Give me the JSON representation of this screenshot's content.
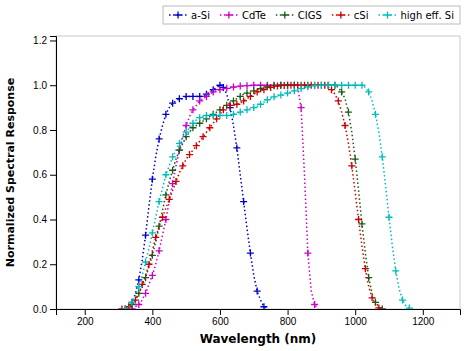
{
  "chart_data": {
    "type": "line",
    "xlabel": "Wavelength (nm)",
    "ylabel": "Normalized Spectral Response",
    "xlim": [
      115,
      1310
    ],
    "xticks": [
      200,
      400,
      600,
      800,
      1000,
      1200
    ],
    "ylim": [
      0.0,
      1.22
    ],
    "yticks": [
      {
        "value": 0.0,
        "label": "0.0"
      },
      0.2,
      0.4,
      0.6,
      0.8,
      {
        "value": 1.0,
        "label": "1.0"
      },
      1.2
    ],
    "grid": false,
    "legend": "upper right",
    "marker": "plus",
    "line_style": "dotted",
    "series": [
      {
        "name": "a-Si",
        "color": "#0000cc",
        "x": [
          320,
          330,
          340,
          350,
          360,
          370,
          380,
          390,
          400,
          410,
          420,
          430,
          440,
          450,
          460,
          470,
          480,
          490,
          500,
          510,
          520,
          530,
          540,
          550,
          560,
          570,
          580,
          590,
          600,
          605,
          610,
          620,
          630,
          640,
          650,
          660,
          670,
          680,
          690,
          700,
          710,
          720,
          730,
          740
        ],
        "values": [
          0.0,
          0.01,
          0.03,
          0.07,
          0.13,
          0.22,
          0.33,
          0.46,
          0.58,
          0.68,
          0.76,
          0.82,
          0.87,
          0.9,
          0.92,
          0.93,
          0.94,
          0.94,
          0.95,
          0.95,
          0.95,
          0.95,
          0.95,
          0.95,
          0.96,
          0.97,
          0.98,
          0.99,
          1.0,
          1.0,
          0.99,
          0.96,
          0.9,
          0.82,
          0.72,
          0.6,
          0.48,
          0.36,
          0.25,
          0.15,
          0.08,
          0.04,
          0.01,
          0.0
        ]
      },
      {
        "name": "CdTe",
        "color": "#cc00cc",
        "x": [
          340,
          350,
          360,
          370,
          380,
          390,
          400,
          410,
          420,
          430,
          440,
          450,
          460,
          470,
          480,
          490,
          500,
          510,
          520,
          530,
          540,
          550,
          560,
          570,
          580,
          590,
          600,
          610,
          620,
          630,
          640,
          650,
          660,
          670,
          680,
          690,
          700,
          710,
          720,
          730,
          740,
          750,
          760,
          770,
          780,
          790,
          800,
          810,
          820,
          830,
          840,
          850,
          860,
          870,
          880,
          890
        ],
        "values": [
          0.0,
          0.01,
          0.02,
          0.04,
          0.07,
          0.11,
          0.15,
          0.2,
          0.26,
          0.33,
          0.4,
          0.48,
          0.56,
          0.64,
          0.71,
          0.77,
          0.82,
          0.86,
          0.89,
          0.91,
          0.93,
          0.94,
          0.95,
          0.96,
          0.97,
          0.975,
          0.98,
          0.983,
          0.986,
          0.989,
          0.992,
          0.994,
          0.996,
          0.997,
          0.998,
          0.999,
          1.0,
          1.0,
          1.0,
          1.0,
          1.0,
          1.0,
          1.0,
          1.0,
          1.0,
          1.0,
          1.0,
          1.0,
          1.0,
          0.99,
          0.9,
          0.6,
          0.25,
          0.08,
          0.02,
          0.0
        ]
      },
      {
        "name": "CIGS",
        "color": "#1a5a1a",
        "x": [
          320,
          330,
          340,
          350,
          360,
          370,
          380,
          390,
          400,
          410,
          420,
          430,
          440,
          450,
          460,
          470,
          480,
          490,
          500,
          510,
          520,
          530,
          540,
          550,
          560,
          570,
          580,
          590,
          600,
          610,
          620,
          630,
          640,
          650,
          660,
          670,
          680,
          690,
          700,
          710,
          720,
          730,
          740,
          750,
          760,
          770,
          780,
          790,
          800,
          810,
          820,
          830,
          840,
          850,
          860,
          870,
          880,
          890,
          900,
          910,
          920,
          930,
          940,
          950,
          960,
          970,
          980,
          990,
          1000,
          1010,
          1020,
          1030,
          1040,
          1050,
          1060,
          1070,
          1080
        ],
        "values": [
          0.0,
          0.01,
          0.02,
          0.04,
          0.07,
          0.1,
          0.14,
          0.19,
          0.24,
          0.3,
          0.37,
          0.44,
          0.51,
          0.57,
          0.62,
          0.67,
          0.71,
          0.74,
          0.77,
          0.79,
          0.81,
          0.82,
          0.83,
          0.84,
          0.85,
          0.86,
          0.87,
          0.88,
          0.89,
          0.9,
          0.91,
          0.92,
          0.93,
          0.94,
          0.95,
          0.96,
          0.965,
          0.97,
          0.975,
          0.98,
          0.985,
          0.99,
          0.993,
          0.996,
          0.998,
          0.999,
          1.0,
          1.0,
          1.0,
          1.0,
          1.0,
          1.0,
          1.0,
          1.0,
          1.0,
          1.0,
          1.0,
          1.0,
          1.0,
          1.0,
          1.0,
          1.0,
          1.0,
          0.99,
          0.97,
          0.94,
          0.88,
          0.79,
          0.67,
          0.53,
          0.38,
          0.25,
          0.14,
          0.07,
          0.03,
          0.01,
          0.0
        ]
      },
      {
        "name": "cSi",
        "color": "#cc0000",
        "x": [
          310,
          320,
          330,
          340,
          350,
          360,
          370,
          380,
          390,
          400,
          410,
          420,
          430,
          440,
          450,
          460,
          470,
          480,
          490,
          500,
          510,
          520,
          530,
          540,
          550,
          560,
          570,
          580,
          590,
          600,
          610,
          620,
          630,
          640,
          650,
          660,
          670,
          680,
          690,
          700,
          710,
          720,
          730,
          740,
          750,
          760,
          770,
          780,
          790,
          800,
          810,
          820,
          830,
          840,
          850,
          860,
          870,
          880,
          890,
          900,
          910,
          920,
          930,
          940,
          950,
          960,
          970,
          980,
          990,
          1000,
          1010,
          1020,
          1030,
          1040,
          1050,
          1060,
          1070,
          1080
        ],
        "values": [
          0.0,
          0.005,
          0.01,
          0.02,
          0.04,
          0.07,
          0.11,
          0.15,
          0.2,
          0.26,
          0.32,
          0.37,
          0.41,
          0.45,
          0.49,
          0.53,
          0.57,
          0.61,
          0.64,
          0.67,
          0.69,
          0.71,
          0.73,
          0.75,
          0.77,
          0.79,
          0.81,
          0.83,
          0.85,
          0.87,
          0.89,
          0.9,
          0.91,
          0.91,
          0.915,
          0.92,
          0.93,
          0.94,
          0.95,
          0.96,
          0.97,
          0.975,
          0.98,
          0.985,
          0.99,
          0.993,
          0.996,
          0.998,
          0.999,
          1.0,
          1.0,
          1.0,
          1.0,
          1.0,
          1.0,
          1.0,
          1.0,
          1.0,
          1.0,
          1.0,
          1.0,
          0.99,
          0.98,
          0.96,
          0.93,
          0.88,
          0.82,
          0.74,
          0.64,
          0.52,
          0.4,
          0.28,
          0.18,
          0.1,
          0.05,
          0.02,
          0.005,
          0.0
        ]
      },
      {
        "name": "high eff. Si",
        "color": "#00bbbb",
        "x": [
          320,
          330,
          340,
          350,
          360,
          370,
          380,
          390,
          400,
          410,
          420,
          430,
          440,
          450,
          460,
          470,
          480,
          490,
          500,
          510,
          520,
          530,
          540,
          550,
          560,
          570,
          580,
          590,
          600,
          610,
          620,
          630,
          640,
          650,
          660,
          670,
          680,
          690,
          700,
          710,
          720,
          730,
          740,
          750,
          760,
          770,
          780,
          790,
          800,
          810,
          820,
          830,
          840,
          850,
          860,
          870,
          880,
          890,
          900,
          910,
          920,
          930,
          940,
          950,
          960,
          970,
          980,
          990,
          1000,
          1010,
          1020,
          1030,
          1040,
          1050,
          1060,
          1070,
          1080,
          1090,
          1100,
          1110,
          1120,
          1130,
          1140,
          1150,
          1160,
          1170
        ],
        "values": [
          0.0,
          0.01,
          0.03,
          0.06,
          0.1,
          0.15,
          0.21,
          0.27,
          0.34,
          0.41,
          0.48,
          0.54,
          0.6,
          0.64,
          0.68,
          0.71,
          0.74,
          0.77,
          0.79,
          0.81,
          0.83,
          0.845,
          0.855,
          0.86,
          0.865,
          0.865,
          0.865,
          0.865,
          0.865,
          0.865,
          0.865,
          0.865,
          0.87,
          0.875,
          0.88,
          0.885,
          0.89,
          0.895,
          0.9,
          0.905,
          0.915,
          0.925,
          0.935,
          0.942,
          0.948,
          0.952,
          0.956,
          0.96,
          0.965,
          0.97,
          0.975,
          0.98,
          0.985,
          0.99,
          0.993,
          0.996,
          0.998,
          0.999,
          1.0,
          1.0,
          1.0,
          1.0,
          1.0,
          1.0,
          1.0,
          1.0,
          1.0,
          1.0,
          1.0,
          1.0,
          1.0,
          0.99,
          0.97,
          0.93,
          0.87,
          0.79,
          0.68,
          0.55,
          0.41,
          0.28,
          0.17,
          0.09,
          0.04,
          0.015,
          0.004,
          0.0
        ]
      }
    ]
  }
}
